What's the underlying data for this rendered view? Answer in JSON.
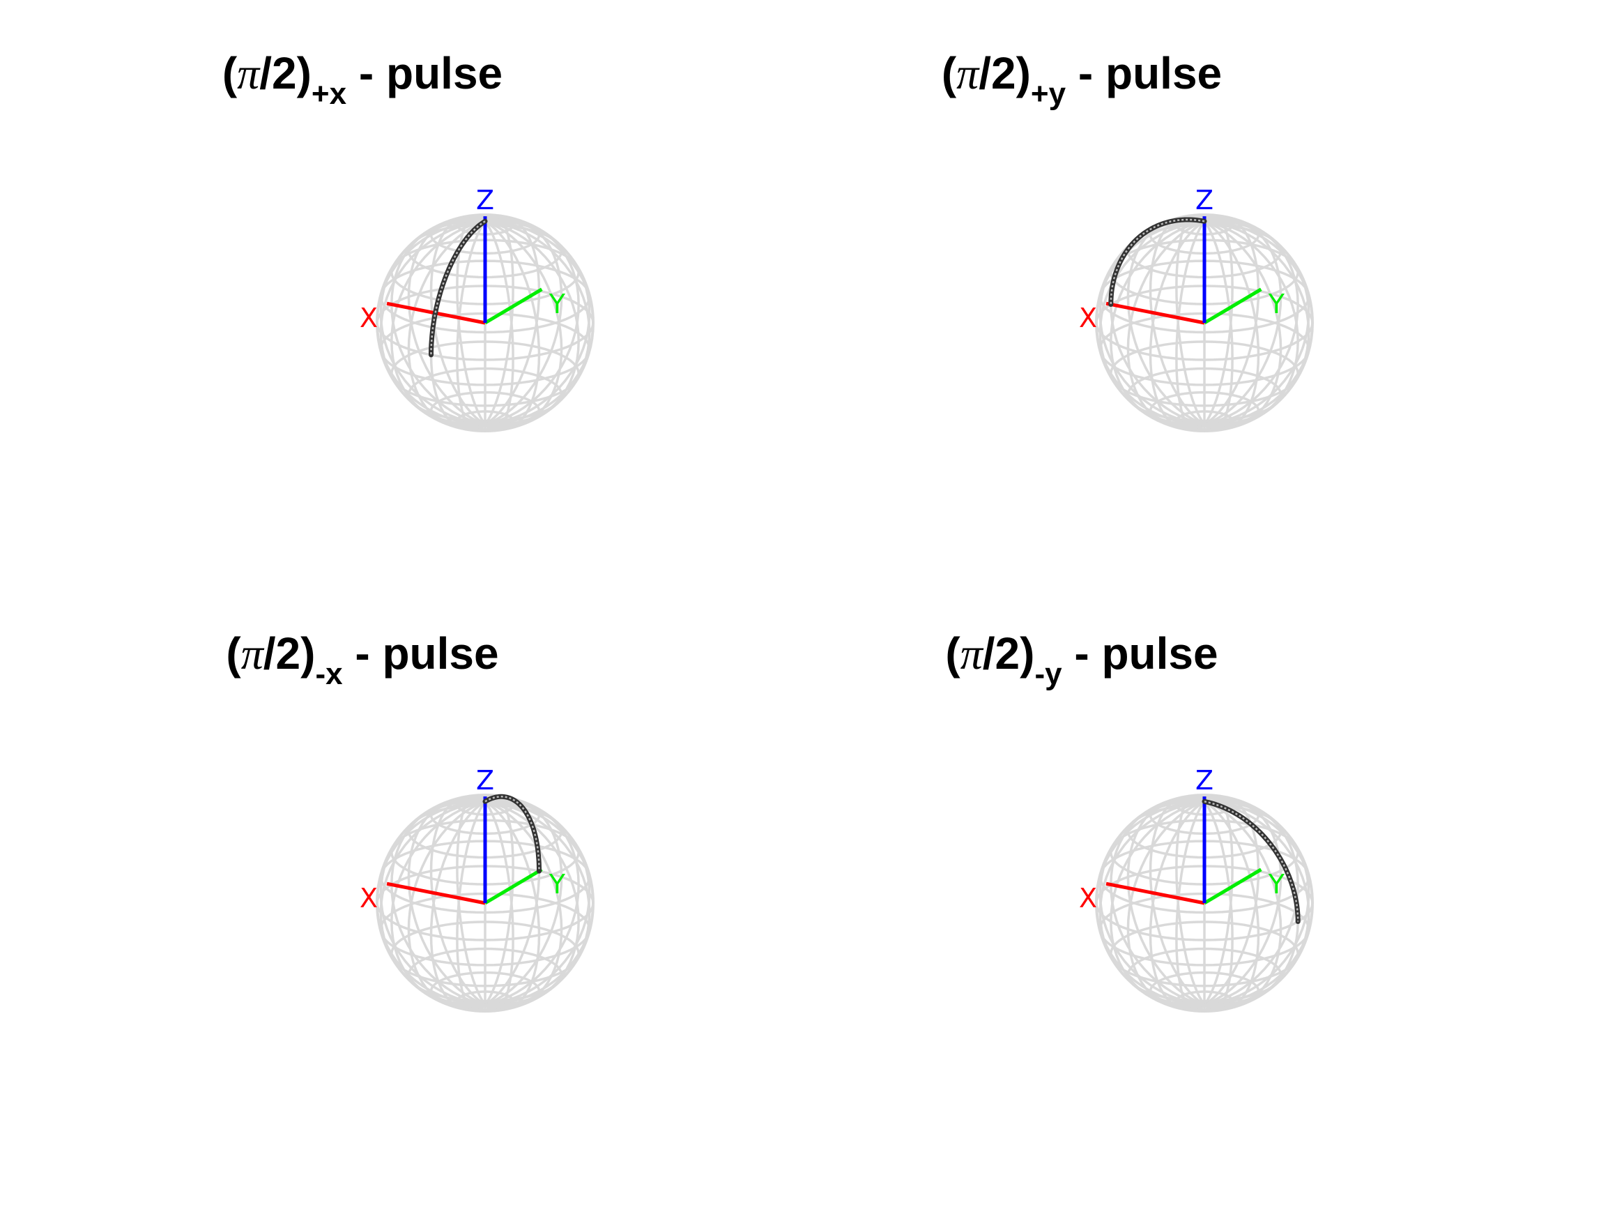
{
  "figure": {
    "panels": [
      {
        "title_open": "(",
        "title_pi": "π",
        "title_mid": "/2)",
        "title_sub": "+x",
        "title_tail": " - pulse",
        "arc": "plus-x"
      },
      {
        "title_open": "(",
        "title_pi": "π",
        "title_mid": "/2)",
        "title_sub": "+y",
        "title_tail": " - pulse",
        "arc": "plus-y"
      },
      {
        "title_open": "(",
        "title_pi": "π",
        "title_mid": "/2)",
        "title_sub": "-x",
        "title_tail": " - pulse",
        "arc": "minus-x"
      },
      {
        "title_open": "(",
        "title_pi": "π",
        "title_mid": "/2)",
        "title_sub": "-y",
        "title_tail": " - pulse",
        "arc": "minus-y"
      }
    ],
    "axis_labels": {
      "x": "X",
      "y": "Y",
      "z": "Z"
    },
    "colors": {
      "x_axis": "#ff0000",
      "y_axis": "#00ee00",
      "z_axis": "#0000ff",
      "wireframe": "#d9d9d9",
      "trajectory": "#333333"
    }
  }
}
